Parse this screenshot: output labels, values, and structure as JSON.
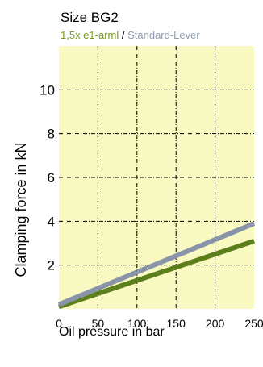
{
  "chart_data": {
    "type": "line",
    "title": "Size BG2",
    "subtitle_parts": [
      {
        "text": "1,5x e1-arml",
        "color": "#7a9a1e"
      },
      {
        "text": " / ",
        "color": "#000000"
      },
      {
        "text": "Standard-Lever",
        "color": "#8f9bb0"
      }
    ],
    "xlabel": "Oil pressure in bar",
    "ylabel": "Clamping force in kN",
    "xlim": [
      0,
      250
    ],
    "ylim": [
      0,
      12
    ],
    "xticks": [
      0,
      50,
      100,
      150,
      200,
      250
    ],
    "yticks": [
      2,
      4,
      6,
      8,
      10
    ],
    "grid": true,
    "plot_background": "#f9f9c2",
    "series": [
      {
        "color": "#5d7f1b",
        "x": [
          0,
          250
        ],
        "y": [
          0.1,
          3.1
        ]
      },
      {
        "color": "#8a94a8",
        "x": [
          0,
          250
        ],
        "y": [
          0.2,
          3.9
        ]
      }
    ]
  }
}
